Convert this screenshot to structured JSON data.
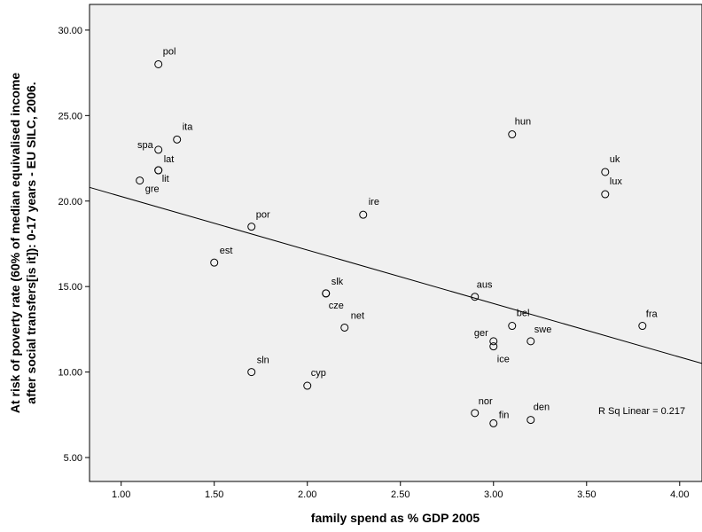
{
  "chart_data": {
    "type": "scatter",
    "xlabel": "family spend as % GDP 2005",
    "ylabel_lines": [
      "At risk of poverty rate (60% of median equivalised income",
      "after social transfers[is it]): 0-17 years - EU SILC, 2006."
    ],
    "xlim": [
      0.83,
      4.12
    ],
    "ylim": [
      3.6,
      31.5
    ],
    "xticks": [
      "1.00",
      "1.50",
      "2.00",
      "2.50",
      "3.00",
      "3.50",
      "4.00"
    ],
    "xtick_values": [
      1.0,
      1.5,
      2.0,
      2.5,
      3.0,
      3.5,
      4.0
    ],
    "yticks": [
      "5.00",
      "10.00",
      "15.00",
      "20.00",
      "25.00",
      "30.00"
    ],
    "ytick_values": [
      5,
      10,
      15,
      20,
      25,
      30
    ],
    "grid": false,
    "legend": "none",
    "annotation": "R Sq Linear = 0.217",
    "fit_line": {
      "type": "linear",
      "y_at_x_start": 20.8,
      "y_at_x_end": 10.5
    },
    "points": [
      {
        "label": "pol",
        "x": 1.2,
        "y": 28.0
      },
      {
        "label": "ita",
        "x": 1.3,
        "y": 23.6
      },
      {
        "label": "spa",
        "x": 1.2,
        "y": 23.0
      },
      {
        "label": "lat",
        "x": 1.2,
        "y": 21.8
      },
      {
        "label": "lit",
        "x": 1.2,
        "y": 21.8
      },
      {
        "label": "gre",
        "x": 1.1,
        "y": 21.2
      },
      {
        "label": "por",
        "x": 1.7,
        "y": 18.5
      },
      {
        "label": "est",
        "x": 1.5,
        "y": 16.4
      },
      {
        "label": "ire",
        "x": 2.3,
        "y": 19.2
      },
      {
        "label": "slk",
        "x": 2.1,
        "y": 14.6
      },
      {
        "label": "cze",
        "x": 2.1,
        "y": 14.6
      },
      {
        "label": "net",
        "x": 2.2,
        "y": 12.6
      },
      {
        "label": "sln",
        "x": 1.7,
        "y": 10.0
      },
      {
        "label": "cyp",
        "x": 2.0,
        "y": 9.2
      },
      {
        "label": "hun",
        "x": 3.1,
        "y": 23.9
      },
      {
        "label": "uk",
        "x": 3.6,
        "y": 21.7
      },
      {
        "label": "lux",
        "x": 3.6,
        "y": 20.4
      },
      {
        "label": "aus",
        "x": 2.9,
        "y": 14.4
      },
      {
        "label": "bel",
        "x": 3.1,
        "y": 12.7
      },
      {
        "label": "ger",
        "x": 3.0,
        "y": 11.8
      },
      {
        "label": "ice",
        "x": 3.0,
        "y": 11.5
      },
      {
        "label": "swe",
        "x": 3.2,
        "y": 11.8
      },
      {
        "label": "fra",
        "x": 3.8,
        "y": 12.7
      },
      {
        "label": "nor",
        "x": 2.9,
        "y": 7.6
      },
      {
        "label": "fin",
        "x": 3.0,
        "y": 7.0
      },
      {
        "label": "den",
        "x": 3.2,
        "y": 7.2
      }
    ]
  }
}
